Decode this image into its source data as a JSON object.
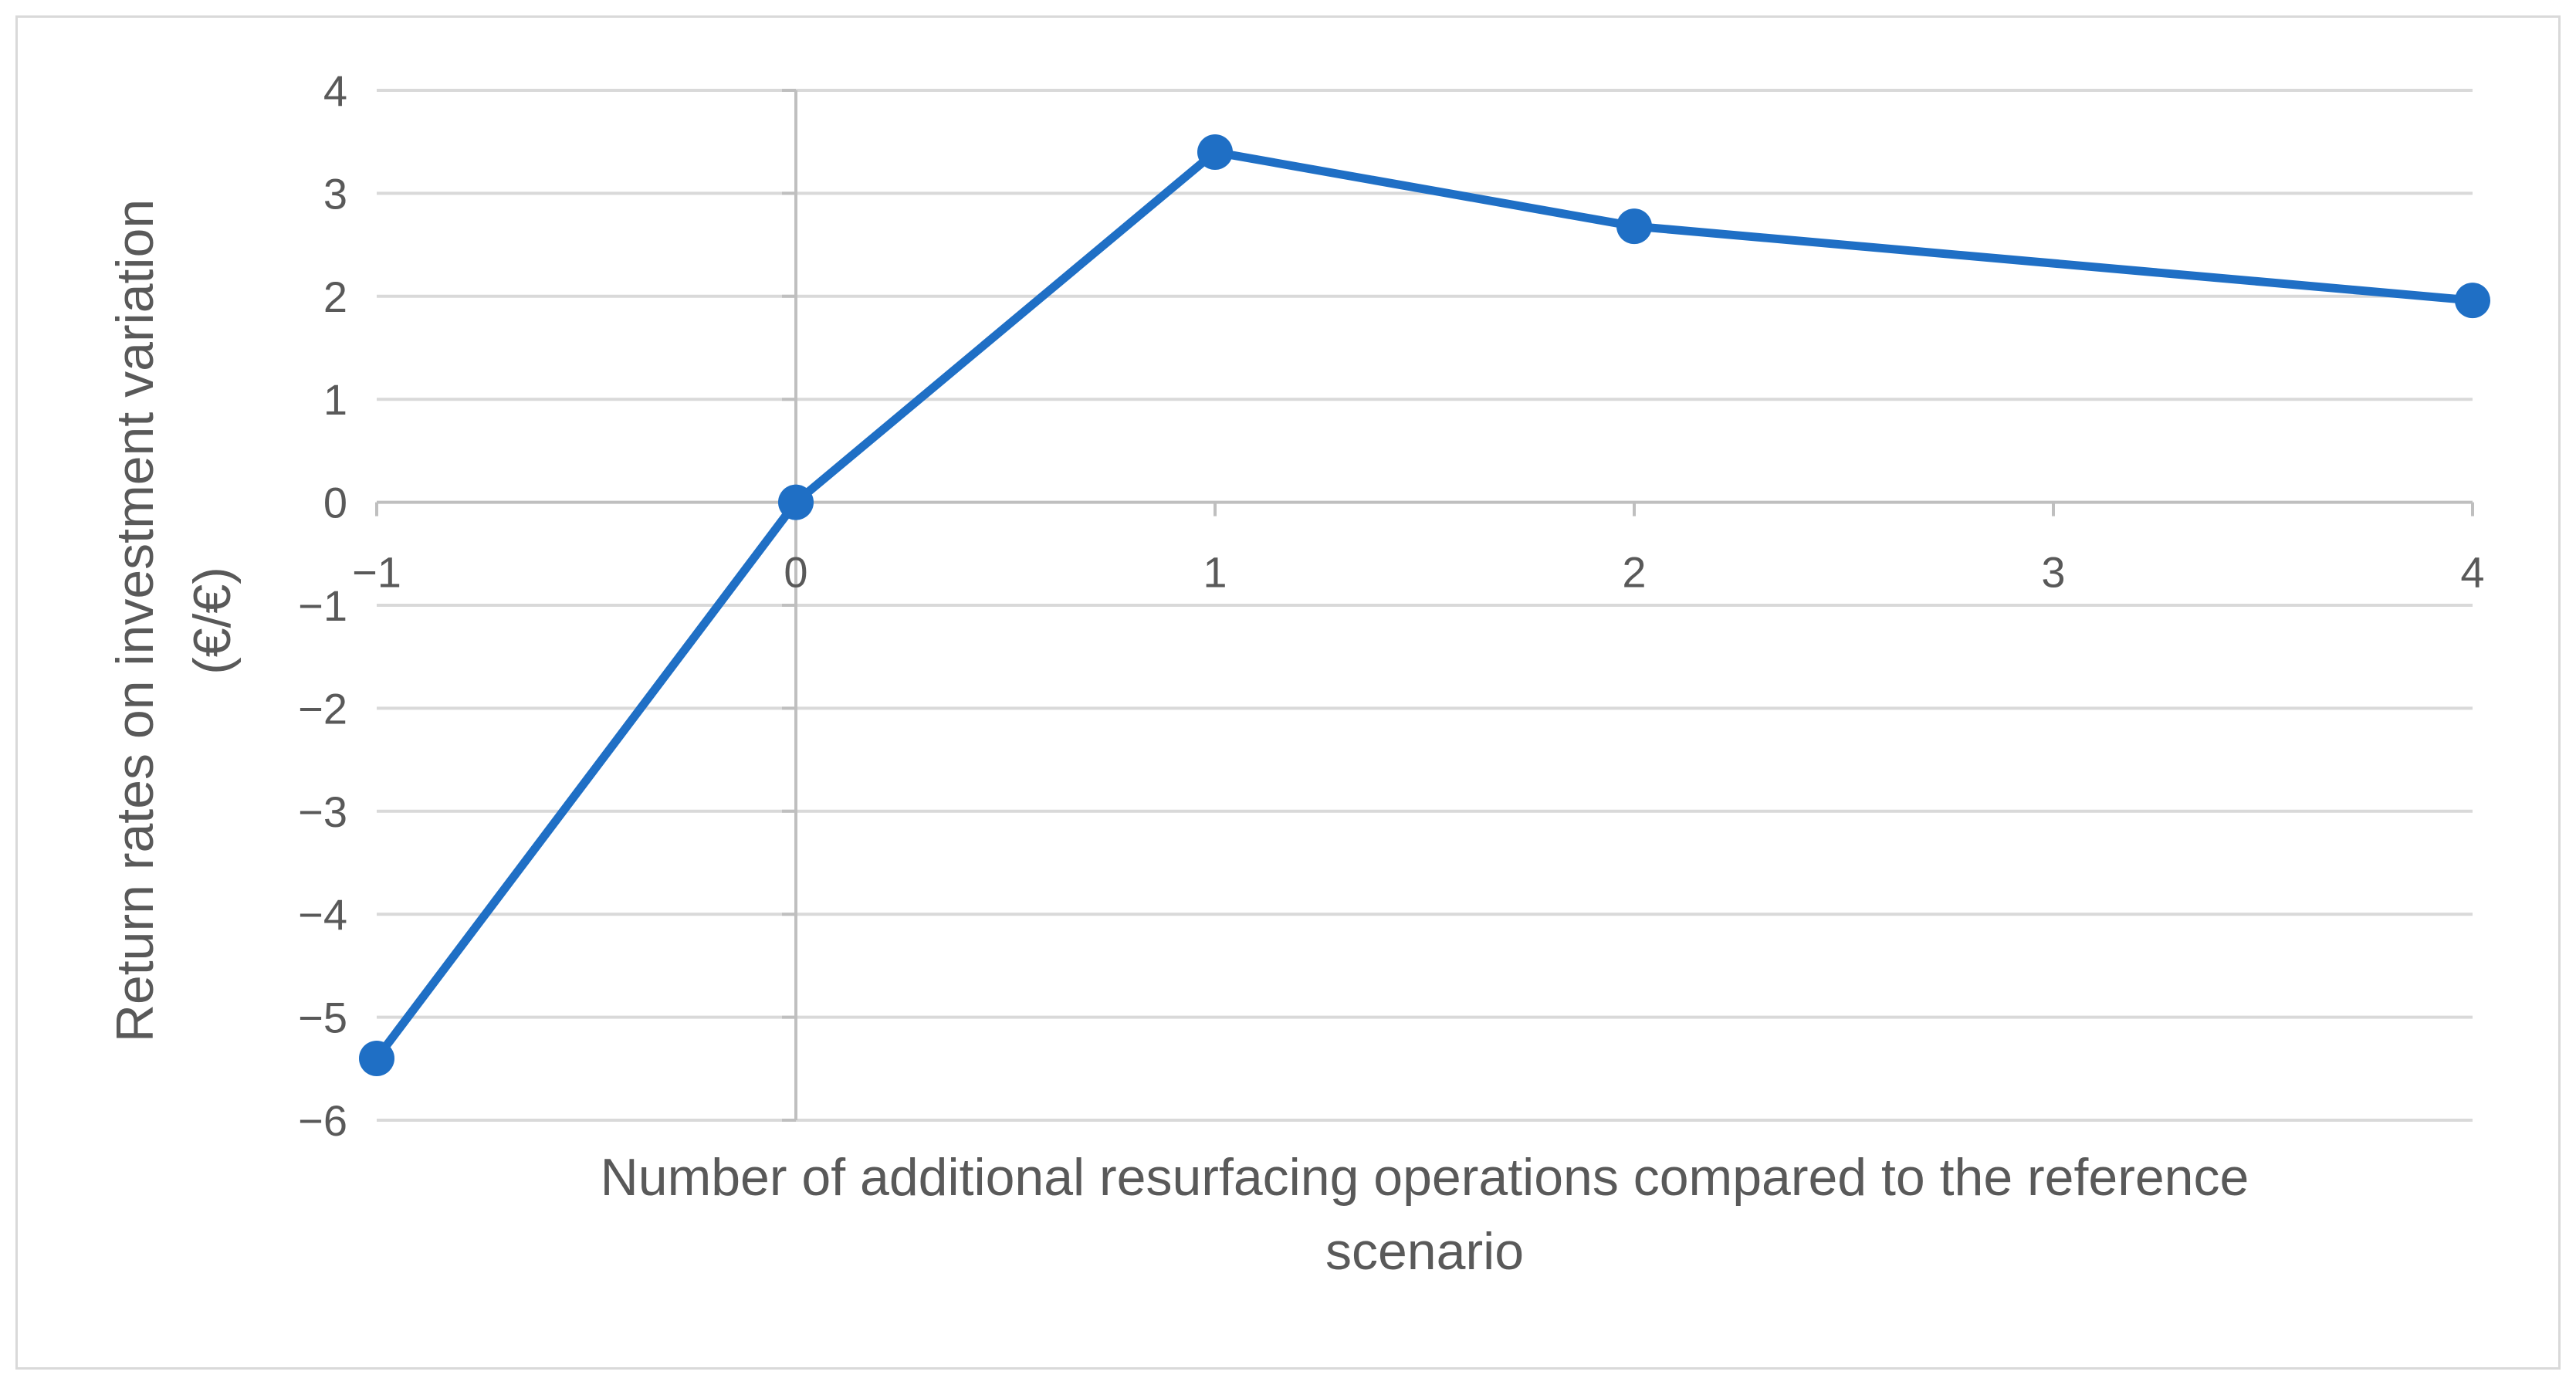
{
  "chart_data": {
    "type": "scatter",
    "mode": "lines+markers",
    "title": "",
    "xlabel_lines": [
      "Number of additional resurfacing operations compared to the reference",
      "scenario"
    ],
    "ylabel_lines": [
      "Return rates on investment variation",
      "(€/€)"
    ],
    "xlim": [
      -1,
      4
    ],
    "ylim": [
      -6,
      4
    ],
    "x_ticks": [
      -1,
      0,
      1,
      2,
      3,
      4
    ],
    "x_tick_labels": [
      "−1",
      "0",
      "1",
      "2",
      "3",
      "4"
    ],
    "y_ticks": [
      4,
      3,
      2,
      1,
      0,
      -1,
      -2,
      -3,
      -4,
      -5,
      -6
    ],
    "y_tick_labels": [
      "4",
      "3",
      "2",
      "1",
      "0",
      "−1",
      "−2",
      "−3",
      "−4",
      "−5",
      "−6"
    ],
    "grid": true,
    "legend": "none",
    "series": [
      {
        "color": "#1f6fc5",
        "points": [
          {
            "x": -1,
            "y": -5.4
          },
          {
            "x": 0,
            "y": 0
          },
          {
            "x": 1,
            "y": 3.4
          },
          {
            "x": 2,
            "y": 2.68
          },
          {
            "x": 4,
            "y": 1.96
          }
        ]
      }
    ],
    "colors": {
      "grid": "#d9d9d9",
      "axis": "#bfbfbf",
      "text": "#595959",
      "frame": "#d9d9d9"
    }
  }
}
